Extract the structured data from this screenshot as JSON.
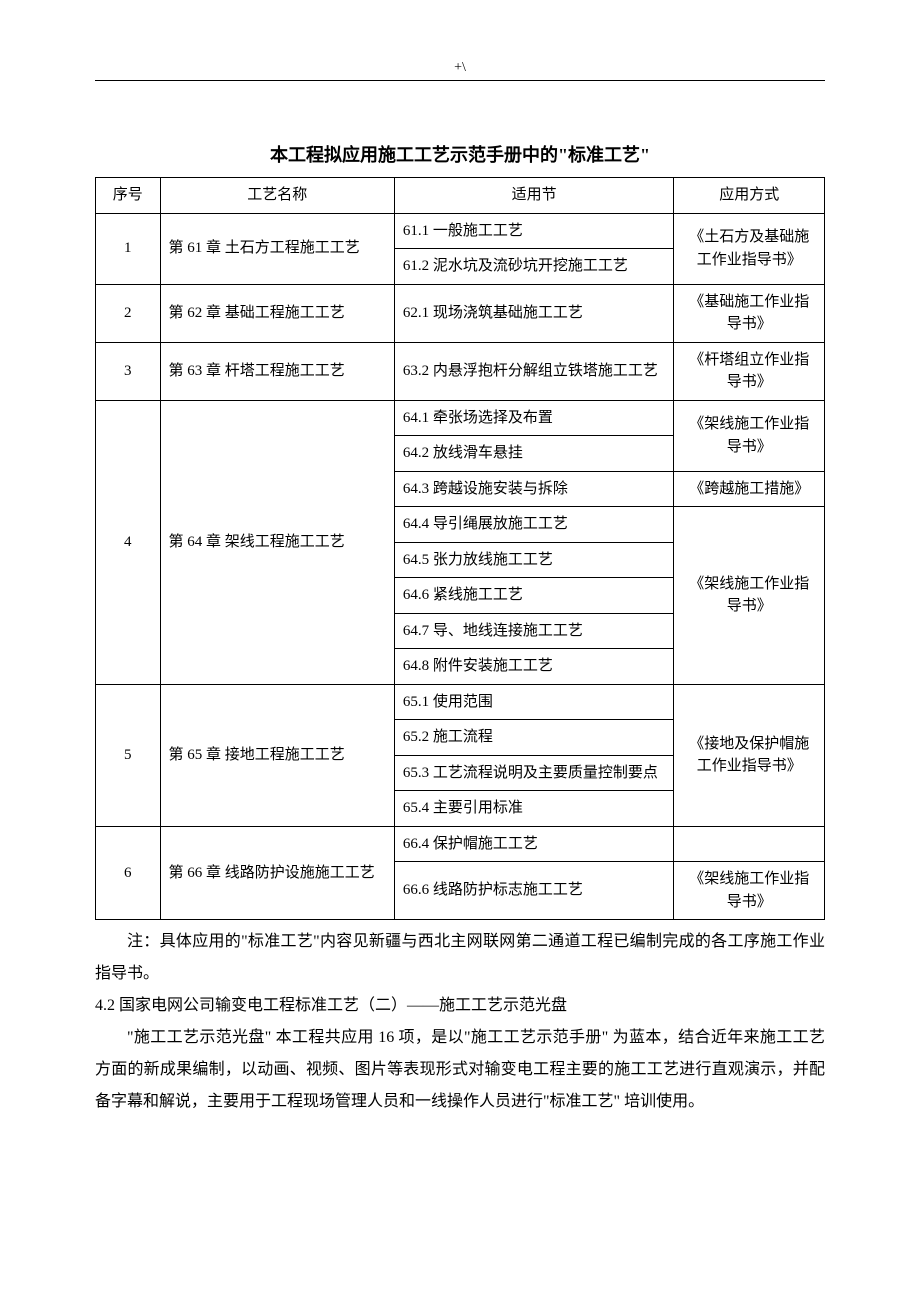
{
  "header": {
    "mark": "+\\"
  },
  "title": "本工程拟应用施工工艺示范手册中的\"标准工艺\"",
  "columns": [
    "序号",
    "工艺名称",
    "适用节",
    "应用方式"
  ],
  "rows": [
    {
      "no": "1",
      "name": "第 61 章  土石方工程施工工艺",
      "items": [
        "61.1 一般施工工艺",
        "61.2 泥水坑及流砂坑开挖施工工艺"
      ],
      "use": "《土石方及基础施工作业指导书》"
    },
    {
      "no": "2",
      "name": "第 62 章  基础工程施工工艺",
      "items": [
        "62.1 现场浇筑基础施工工艺"
      ],
      "use": "《基础施工作业指导书》"
    },
    {
      "no": "3",
      "name": "第 63 章  杆塔工程施工工艺",
      "items": [
        "63.2 内悬浮抱杆分解组立铁塔施工工艺"
      ],
      "use": "《杆塔组立作业指导书》"
    },
    {
      "no": "4",
      "name": "第 64 章  架线工程施工工艺",
      "items": [
        "64.1 牵张场选择及布置",
        "64.2 放线滑车悬挂",
        "64.3 跨越设施安装与拆除",
        "64.4 导引绳展放施工工艺",
        "64.5 张力放线施工工艺",
        "64.6 紧线施工工艺",
        "64.7 导、地线连接施工工艺",
        "64.8 附件安装施工工艺"
      ],
      "uses": [
        {
          "text": "《架线施工作业指导书》",
          "span": 2
        },
        {
          "text": "《跨越施工措施》",
          "span": 1
        },
        {
          "text": "《架线施工作业指导书》",
          "span": 5
        }
      ]
    },
    {
      "no": "5",
      "name": "第 65 章  接地工程施工工艺",
      "items": [
        "65.1 使用范围",
        "65.2 施工流程",
        "65.3 工艺流程说明及主要质量控制要点",
        "65.4 主要引用标准"
      ],
      "use": "《接地及保护帽施工作业指导书》"
    },
    {
      "no": "6",
      "name": "第 66 章  线路防护设施施工工艺",
      "items": [
        "66.4 保护帽施工工艺",
        "66.6 线路防护标志施工工艺"
      ],
      "uses": [
        {
          "text": "",
          "span": 1
        },
        {
          "text": "《架线施工作业指导书》",
          "span": 1
        }
      ]
    }
  ],
  "note": "注：具体应用的\"标准工艺\"内容见新疆与西北主网联网第二通道工程已编制完成的各工序施工作业指导书。",
  "section": {
    "head": "4.2 国家电网公司输变电工程标准工艺（二）——施工工艺示范光盘",
    "para": "\"施工工艺示范光盘\" 本工程共应用 16 项，是以\"施工工艺示范手册\" 为蓝本，结合近年来施工工艺方面的新成果编制，以动画、视频、图片等表现形式对输变电工程主要的施工工艺进行直观演示，并配备字幕和解说，主要用于工程现场管理人员和一线操作人员进行\"标准工艺\" 培训使用。"
  }
}
